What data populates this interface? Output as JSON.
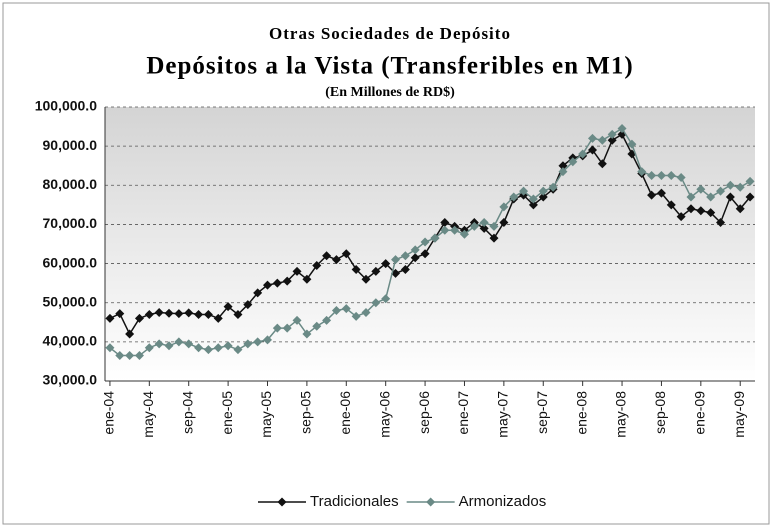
{
  "chart_data": {
    "type": "line",
    "title": "Otras Sociedades de Depósito",
    "subtitle": "Depósitos a la Vista (Transferibles en M1)",
    "y_label": "(En Millones de RD$)",
    "categories": [
      "ene-04",
      null,
      null,
      null,
      "may-04",
      null,
      null,
      null,
      "sep-04",
      null,
      null,
      null,
      "ene-05",
      null,
      null,
      null,
      "may-05",
      null,
      null,
      null,
      "sep-05",
      null,
      null,
      null,
      "ene-06",
      null,
      null,
      null,
      "may-06",
      null,
      null,
      null,
      "sep-06",
      null,
      null,
      null,
      "ene-07",
      null,
      null,
      null,
      "may-07",
      null,
      null,
      null,
      "sep-07",
      null,
      null,
      null,
      "ene-08",
      null,
      null,
      null,
      "may-08",
      null,
      null,
      null,
      "sep-08",
      null,
      null,
      null,
      "ene-09",
      null,
      null,
      null,
      "may-09",
      null
    ],
    "series": [
      {
        "name": "Tradicionales",
        "color": "#111111",
        "values": [
          46000,
          47200,
          42000,
          46000,
          47000,
          47500,
          47300,
          47200,
          47400,
          47000,
          47000,
          46000,
          49000,
          47000,
          49500,
          52500,
          54500,
          55000,
          55500,
          58000,
          56000,
          59500,
          62000,
          61000,
          62500,
          58500,
          56000,
          58000,
          60000,
          57500,
          58500,
          61500,
          62500,
          66500,
          70500,
          69500,
          68500,
          70500,
          69000,
          66500,
          70500,
          76500,
          77500,
          75000,
          77000,
          79000,
          85000,
          87000,
          87500,
          89000,
          85500,
          91500,
          93000,
          88000,
          83000,
          77500,
          78000,
          75000,
          72000,
          74000,
          73500,
          73000,
          70500,
          77000,
          74000,
          77000
        ]
      },
      {
        "name": "Armonizados",
        "color": "#6a8a86",
        "values": [
          38500,
          36500,
          36500,
          36500,
          38500,
          39500,
          39000,
          40000,
          39500,
          38500,
          38000,
          38500,
          39000,
          38000,
          39500,
          40000,
          40500,
          43500,
          43500,
          45500,
          42000,
          44000,
          45500,
          48000,
          48500,
          46500,
          47500,
          50000,
          51000,
          61000,
          62000,
          63500,
          65500,
          66500,
          68500,
          68500,
          67500,
          69500,
          70500,
          69500,
          74500,
          77000,
          78500,
          76500,
          78500,
          79500,
          83500,
          86000,
          88000,
          92000,
          91500,
          93000,
          94500,
          90500,
          83500,
          82500,
          82500,
          82500,
          82000,
          77000,
          79000,
          77000,
          78500,
          80000,
          79500,
          81000
        ]
      }
    ],
    "ylim": [
      30000,
      100000
    ],
    "yticks": [
      {
        "value": 30000,
        "label": "30,000.0"
      },
      {
        "value": 40000,
        "label": "40,000.0"
      },
      {
        "value": 50000,
        "label": "50,000.0"
      },
      {
        "value": 60000,
        "label": "60,000.0"
      },
      {
        "value": 70000,
        "label": "70,000.0"
      },
      {
        "value": 80000,
        "label": "80,000.0"
      },
      {
        "value": 90000,
        "label": "90,000.0"
      },
      {
        "value": 100000,
        "label": "100,000.0"
      }
    ],
    "grid": true,
    "legend": "bottom"
  }
}
